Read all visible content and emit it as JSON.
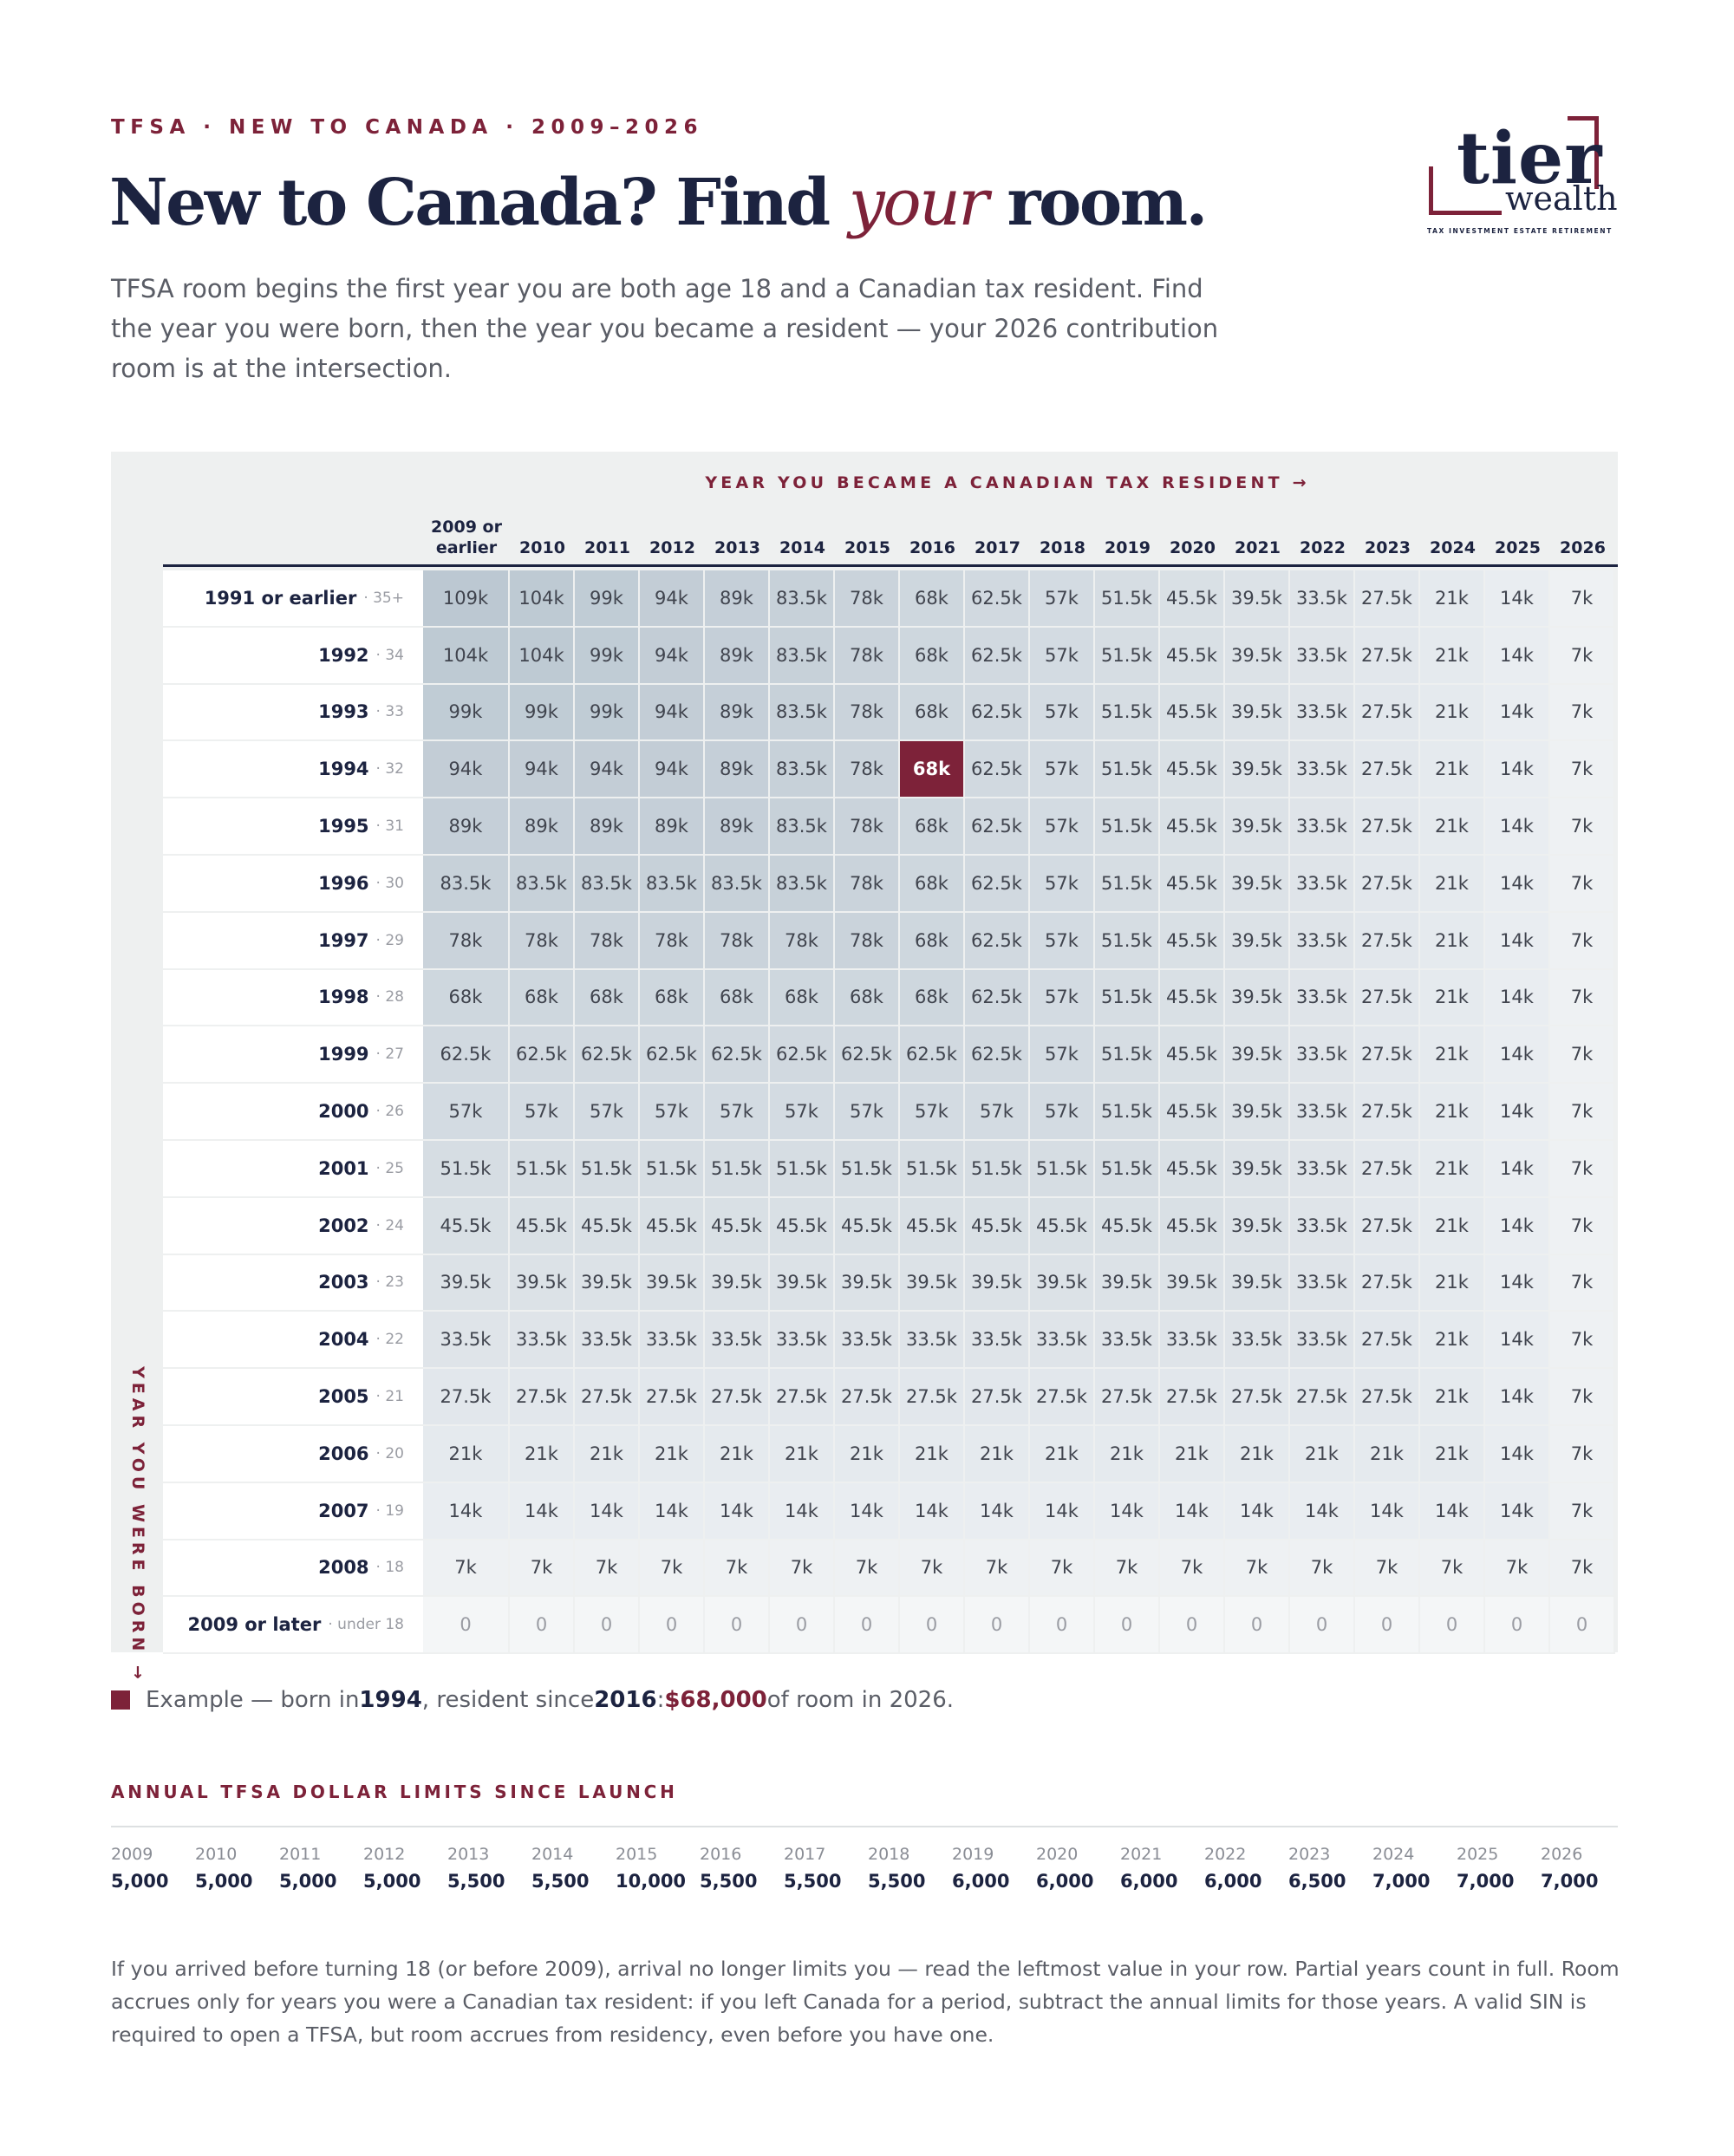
{
  "eyebrow": "TFSA · NEW TO CANADA · 2009–2026",
  "logo": {
    "word1": "tier",
    "word2": "wealth",
    "tagline": "TAX  INVESTMENT  ESTATE  RETIREMENT"
  },
  "headline": {
    "part1": "New to Canada? Find ",
    "emphasis": "your",
    "part2": " room."
  },
  "intro": "TFSA room begins the first year you are both age 18 and a Canadian tax resident. Find the year you were born, then the year you became a resident — your 2026 contribution room is at the intersection.",
  "table": {
    "top_label": "YEAR YOU BECAME A CANADIAN TAX RESIDENT →",
    "side_label": "YEAR YOU WERE BORN →",
    "columns": [
      "2009 or earlier",
      "2010",
      "2011",
      "2012",
      "2013",
      "2014",
      "2015",
      "2016",
      "2017",
      "2018",
      "2019",
      "2020",
      "2021",
      "2022",
      "2023",
      "2024",
      "2025",
      "2026"
    ],
    "highlight": {
      "row": 3,
      "col": 7
    },
    "rows": [
      {
        "year": "1991 or earlier",
        "age": "· 35+",
        "values": [
          "109k",
          "104k",
          "99k",
          "94k",
          "89k",
          "83.5k",
          "78k",
          "68k",
          "62.5k",
          "57k",
          "51.5k",
          "45.5k",
          "39.5k",
          "33.5k",
          "27.5k",
          "21k",
          "14k",
          "7k"
        ]
      },
      {
        "year": "1992",
        "age": "· 34",
        "values": [
          "104k",
          "104k",
          "99k",
          "94k",
          "89k",
          "83.5k",
          "78k",
          "68k",
          "62.5k",
          "57k",
          "51.5k",
          "45.5k",
          "39.5k",
          "33.5k",
          "27.5k",
          "21k",
          "14k",
          "7k"
        ]
      },
      {
        "year": "1993",
        "age": "· 33",
        "values": [
          "99k",
          "99k",
          "99k",
          "94k",
          "89k",
          "83.5k",
          "78k",
          "68k",
          "62.5k",
          "57k",
          "51.5k",
          "45.5k",
          "39.5k",
          "33.5k",
          "27.5k",
          "21k",
          "14k",
          "7k"
        ]
      },
      {
        "year": "1994",
        "age": "· 32",
        "values": [
          "94k",
          "94k",
          "94k",
          "94k",
          "89k",
          "83.5k",
          "78k",
          "68k",
          "62.5k",
          "57k",
          "51.5k",
          "45.5k",
          "39.5k",
          "33.5k",
          "27.5k",
          "21k",
          "14k",
          "7k"
        ]
      },
      {
        "year": "1995",
        "age": "· 31",
        "values": [
          "89k",
          "89k",
          "89k",
          "89k",
          "89k",
          "83.5k",
          "78k",
          "68k",
          "62.5k",
          "57k",
          "51.5k",
          "45.5k",
          "39.5k",
          "33.5k",
          "27.5k",
          "21k",
          "14k",
          "7k"
        ]
      },
      {
        "year": "1996",
        "age": "· 30",
        "values": [
          "83.5k",
          "83.5k",
          "83.5k",
          "83.5k",
          "83.5k",
          "83.5k",
          "78k",
          "68k",
          "62.5k",
          "57k",
          "51.5k",
          "45.5k",
          "39.5k",
          "33.5k",
          "27.5k",
          "21k",
          "14k",
          "7k"
        ]
      },
      {
        "year": "1997",
        "age": "· 29",
        "values": [
          "78k",
          "78k",
          "78k",
          "78k",
          "78k",
          "78k",
          "78k",
          "68k",
          "62.5k",
          "57k",
          "51.5k",
          "45.5k",
          "39.5k",
          "33.5k",
          "27.5k",
          "21k",
          "14k",
          "7k"
        ]
      },
      {
        "year": "1998",
        "age": "· 28",
        "values": [
          "68k",
          "68k",
          "68k",
          "68k",
          "68k",
          "68k",
          "68k",
          "68k",
          "62.5k",
          "57k",
          "51.5k",
          "45.5k",
          "39.5k",
          "33.5k",
          "27.5k",
          "21k",
          "14k",
          "7k"
        ]
      },
      {
        "year": "1999",
        "age": "· 27",
        "values": [
          "62.5k",
          "62.5k",
          "62.5k",
          "62.5k",
          "62.5k",
          "62.5k",
          "62.5k",
          "62.5k",
          "62.5k",
          "57k",
          "51.5k",
          "45.5k",
          "39.5k",
          "33.5k",
          "27.5k",
          "21k",
          "14k",
          "7k"
        ]
      },
      {
        "year": "2000",
        "age": "· 26",
        "values": [
          "57k",
          "57k",
          "57k",
          "57k",
          "57k",
          "57k",
          "57k",
          "57k",
          "57k",
          "57k",
          "51.5k",
          "45.5k",
          "39.5k",
          "33.5k",
          "27.5k",
          "21k",
          "14k",
          "7k"
        ]
      },
      {
        "year": "2001",
        "age": "· 25",
        "values": [
          "51.5k",
          "51.5k",
          "51.5k",
          "51.5k",
          "51.5k",
          "51.5k",
          "51.5k",
          "51.5k",
          "51.5k",
          "51.5k",
          "51.5k",
          "45.5k",
          "39.5k",
          "33.5k",
          "27.5k",
          "21k",
          "14k",
          "7k"
        ]
      },
      {
        "year": "2002",
        "age": "· 24",
        "values": [
          "45.5k",
          "45.5k",
          "45.5k",
          "45.5k",
          "45.5k",
          "45.5k",
          "45.5k",
          "45.5k",
          "45.5k",
          "45.5k",
          "45.5k",
          "45.5k",
          "39.5k",
          "33.5k",
          "27.5k",
          "21k",
          "14k",
          "7k"
        ]
      },
      {
        "year": "2003",
        "age": "· 23",
        "values": [
          "39.5k",
          "39.5k",
          "39.5k",
          "39.5k",
          "39.5k",
          "39.5k",
          "39.5k",
          "39.5k",
          "39.5k",
          "39.5k",
          "39.5k",
          "39.5k",
          "39.5k",
          "33.5k",
          "27.5k",
          "21k",
          "14k",
          "7k"
        ]
      },
      {
        "year": "2004",
        "age": "· 22",
        "values": [
          "33.5k",
          "33.5k",
          "33.5k",
          "33.5k",
          "33.5k",
          "33.5k",
          "33.5k",
          "33.5k",
          "33.5k",
          "33.5k",
          "33.5k",
          "33.5k",
          "33.5k",
          "33.5k",
          "27.5k",
          "21k",
          "14k",
          "7k"
        ]
      },
      {
        "year": "2005",
        "age": "· 21",
        "values": [
          "27.5k",
          "27.5k",
          "27.5k",
          "27.5k",
          "27.5k",
          "27.5k",
          "27.5k",
          "27.5k",
          "27.5k",
          "27.5k",
          "27.5k",
          "27.5k",
          "27.5k",
          "27.5k",
          "27.5k",
          "21k",
          "14k",
          "7k"
        ]
      },
      {
        "year": "2006",
        "age": "· 20",
        "values": [
          "21k",
          "21k",
          "21k",
          "21k",
          "21k",
          "21k",
          "21k",
          "21k",
          "21k",
          "21k",
          "21k",
          "21k",
          "21k",
          "21k",
          "21k",
          "21k",
          "14k",
          "7k"
        ]
      },
      {
        "year": "2007",
        "age": "· 19",
        "values": [
          "14k",
          "14k",
          "14k",
          "14k",
          "14k",
          "14k",
          "14k",
          "14k",
          "14k",
          "14k",
          "14k",
          "14k",
          "14k",
          "14k",
          "14k",
          "14k",
          "14k",
          "7k"
        ]
      },
      {
        "year": "2008",
        "age": "· 18",
        "values": [
          "7k",
          "7k",
          "7k",
          "7k",
          "7k",
          "7k",
          "7k",
          "7k",
          "7k",
          "7k",
          "7k",
          "7k",
          "7k",
          "7k",
          "7k",
          "7k",
          "7k",
          "7k"
        ]
      },
      {
        "year": "2009 or later",
        "age": "· under 18",
        "values": [
          "0",
          "0",
          "0",
          "0",
          "0",
          "0",
          "0",
          "0",
          "0",
          "0",
          "0",
          "0",
          "0",
          "0",
          "0",
          "0",
          "0",
          "0"
        ]
      }
    ]
  },
  "legend": {
    "prefix": "Example — born in ",
    "birth_year": "1994",
    "middle": ", resident since ",
    "resident_year": "2016",
    "colon": ": ",
    "amount": "$68,000",
    "suffix": " of room in 2026."
  },
  "limits": {
    "title": "ANNUAL TFSA DOLLAR LIMITS SINCE LAUNCH",
    "items": [
      {
        "year": "2009",
        "value": "5,000"
      },
      {
        "year": "2010",
        "value": "5,000"
      },
      {
        "year": "2011",
        "value": "5,000"
      },
      {
        "year": "2012",
        "value": "5,000"
      },
      {
        "year": "2013",
        "value": "5,500"
      },
      {
        "year": "2014",
        "value": "5,500"
      },
      {
        "year": "2015",
        "value": "10,000"
      },
      {
        "year": "2016",
        "value": "5,500"
      },
      {
        "year": "2017",
        "value": "5,500"
      },
      {
        "year": "2018",
        "value": "5,500"
      },
      {
        "year": "2019",
        "value": "6,000"
      },
      {
        "year": "2020",
        "value": "6,000"
      },
      {
        "year": "2021",
        "value": "6,000"
      },
      {
        "year": "2022",
        "value": "6,000"
      },
      {
        "year": "2023",
        "value": "6,500"
      },
      {
        "year": "2024",
        "value": "7,000"
      },
      {
        "year": "2025",
        "value": "7,000"
      },
      {
        "year": "2026",
        "value": "7,000"
      }
    ]
  },
  "footnote": "If you arrived before turning 18 (or before 2009), arrival no longer limits you — read the leftmost value in your row. Partial years count in full. Room accrues only for years you were a Canadian tax resident: if you left Canada for a period, subtract the annual limits for those years. A valid SIN is required to open a TFSA, but room accrues from residency, even before you have one.",
  "colors": {
    "accent": "#7d2239",
    "navy": "#1c2340"
  }
}
